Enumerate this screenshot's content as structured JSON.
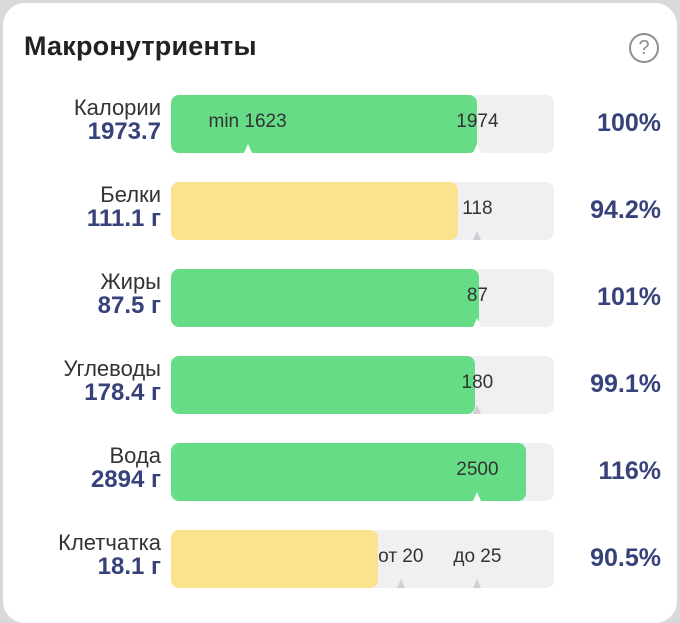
{
  "header": {
    "title": "Макронутриенты",
    "help_icon": "?"
  },
  "nutrients": [
    {
      "label": "Калории",
      "value": "1973.7",
      "percent": "100%",
      "fill_fraction": 0.8,
      "fill_color": "green",
      "markers": [
        {
          "text": "min 1623",
          "at": 0.2
        },
        {
          "text": "1974",
          "at": 0.8
        }
      ]
    },
    {
      "label": "Белки",
      "value": "111.1 г",
      "percent": "94.2%",
      "fill_fraction": 0.75,
      "fill_color": "yellow",
      "markers": [
        {
          "text": "118",
          "at": 0.8
        }
      ]
    },
    {
      "label": "Жиры",
      "value": "87.5 г",
      "percent": "101%",
      "fill_fraction": 0.805,
      "fill_color": "green",
      "markers": [
        {
          "text": "87",
          "at": 0.8
        }
      ]
    },
    {
      "label": "Углеводы",
      "value": "178.4 г",
      "percent": "99.1%",
      "fill_fraction": 0.793,
      "fill_color": "green",
      "markers": [
        {
          "text": "180",
          "at": 0.8
        }
      ]
    },
    {
      "label": "Вода",
      "value": "2894 г",
      "percent": "116%",
      "fill_fraction": 0.926,
      "fill_color": "green",
      "markers": [
        {
          "text": "2500",
          "at": 0.8
        }
      ]
    },
    {
      "label": "Клетчатка",
      "value": "18.1 г",
      "percent": "90.5%",
      "fill_fraction": 0.54,
      "fill_color": "yellow",
      "markers": [
        {
          "text": "от 20",
          "at": 0.6
        },
        {
          "text": "до 25",
          "at": 0.8
        }
      ]
    }
  ],
  "colors": {
    "green": "#67dc87",
    "yellow": "#fbe28c",
    "value_text": "#37427a"
  }
}
